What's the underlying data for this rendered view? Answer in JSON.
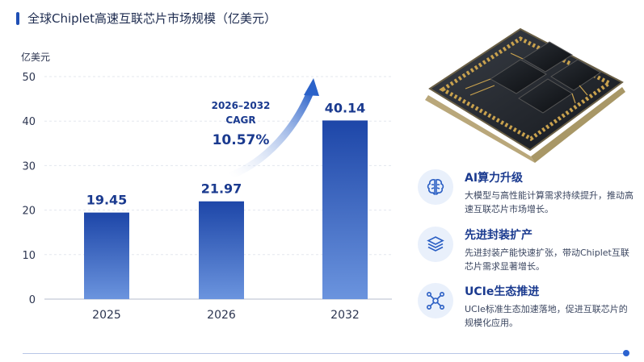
{
  "title": "全球Chiplet高速互联芯片市场规模（亿美元）",
  "colors": {
    "accent": "#1f4fb4",
    "bar_top": "#1d46a8",
    "bar_bottom": "#5b86d6",
    "arrow": "#2b62c9"
  },
  "chart_data": {
    "type": "bar",
    "title": "全球Chiplet高速互联芯片市场规模（亿美元）",
    "ylabel": "亿美元",
    "xlabel": "",
    "categories": [
      "2025",
      "2026",
      "2032"
    ],
    "values": [
      19.45,
      21.97,
      40.14
    ],
    "value_labels": [
      "19.45",
      "21.97",
      "40.14"
    ],
    "ylim": [
      0,
      50
    ],
    "yticks": [
      0,
      10,
      20,
      30,
      40,
      50
    ],
    "ytick_labels": [
      "0",
      "10",
      "20",
      "30",
      "40",
      "50"
    ],
    "grid": true,
    "annotation": {
      "range": "2026–2032",
      "label": "CAGR",
      "value": "10.57%"
    }
  },
  "features": [
    {
      "icon": "brain-icon",
      "title": "AI算力升级",
      "desc": "大模型与高性能计算需求持续提升，推动高速互联芯片市场增长。"
    },
    {
      "icon": "stack-layers-icon",
      "title": "先进封装扩产",
      "desc": "先进封装产能快速扩张，带动Chiplet互联芯片需求显著增长。"
    },
    {
      "icon": "network-nodes-icon",
      "title": "UCIe生态推进",
      "desc": "UCIe标准生态加速落地，促进互联芯片的规模化应用。"
    }
  ]
}
